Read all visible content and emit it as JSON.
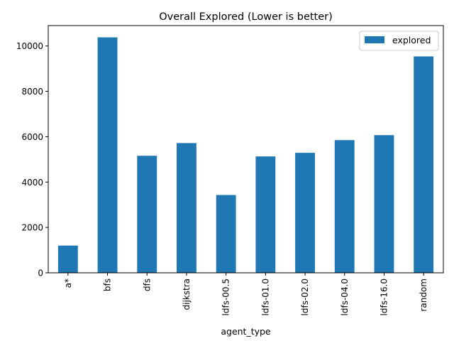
{
  "chart_data": {
    "type": "bar",
    "title": "Overall Explored (Lower is better)",
    "xlabel": "agent_type",
    "ylabel": "",
    "categories": [
      "a*",
      "bfs",
      "dfs",
      "dijkstra",
      "ldfs-00.5",
      "ldfs-01.0",
      "ldfs-02.0",
      "ldfs-04.0",
      "ldfs-16.0",
      "random"
    ],
    "series": [
      {
        "name": "explored",
        "color": "#1f77b4",
        "values": [
          1200,
          10380,
          5160,
          5720,
          3430,
          5130,
          5290,
          5850,
          6070,
          9540
        ]
      }
    ],
    "ylim": [
      0,
      10900
    ],
    "yticks": [
      0,
      2000,
      4000,
      6000,
      8000,
      10000
    ],
    "legend_position": "top-right",
    "grid": false
  }
}
